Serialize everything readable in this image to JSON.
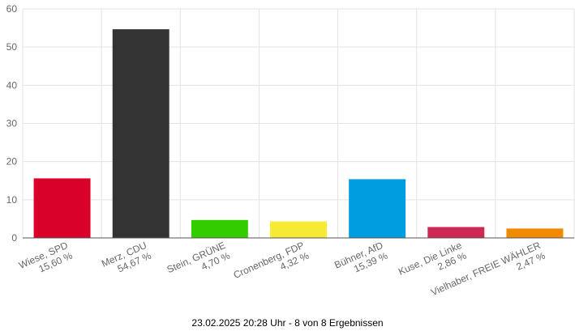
{
  "chart_data": {
    "type": "bar",
    "title": "",
    "xlabel": "",
    "ylabel": "",
    "ylim": [
      0,
      60
    ],
    "yticks": [
      0,
      10,
      20,
      30,
      40,
      50,
      60
    ],
    "grid": true,
    "categories": [
      "Wiese, SPD",
      "Merz, CDU",
      "Stein, GRÜNE",
      "Cronenberg, FDP",
      "Bühner, AfD",
      "Kuse, Die Linke",
      "Vielhaber, FREIE WÄHLER"
    ],
    "values": [
      15.6,
      54.67,
      4.7,
      4.32,
      15.39,
      2.86,
      2.47
    ],
    "value_labels": [
      "15,60 %",
      "54,67 %",
      "4,70 %",
      "4,32 %",
      "15,39 %",
      "2,86 %",
      "2,47 %"
    ],
    "colors": [
      "#d9002a",
      "#333333",
      "#33cc00",
      "#f7ea34",
      "#009ee0",
      "#cc2a55",
      "#f08a00"
    ]
  },
  "footer": {
    "text": "23.02.2025 20:28 Uhr - 8 von 8 Ergebnissen"
  }
}
